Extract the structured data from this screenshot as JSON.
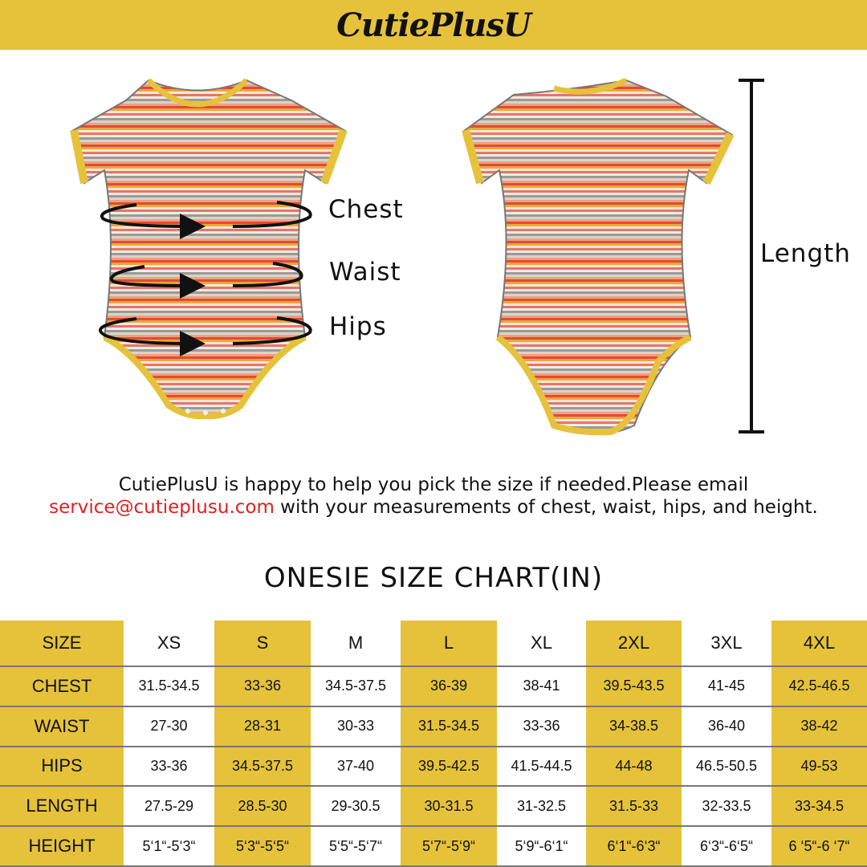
{
  "brand": {
    "logo_text": "CutiePlusU"
  },
  "labels": {
    "chest": "Chest",
    "waist": "Waist",
    "hips": "Hips",
    "length": "Length"
  },
  "message": {
    "line1": "CutiePlusU is happy to help you pick the size if needed.Please email",
    "email": "service@cutieplusu.com",
    "line2_rest": " with your measurements of chest, waist, hips, and height."
  },
  "chart_title": "ONESIE  SIZE  CHART(IN)",
  "colors": {
    "accent": "#E6C23B",
    "email": "#e02020",
    "text": "#111111"
  },
  "size_table": {
    "header": [
      "SIZE",
      "XS",
      "S",
      "M",
      "L",
      "XL",
      "2XL",
      "3XL",
      "4XL"
    ],
    "rows": [
      [
        "CHEST",
        "31.5-34.5",
        "33-36",
        "34.5-37.5",
        "36-39",
        "38-41",
        "39.5-43.5",
        "41-45",
        "42.5-46.5"
      ],
      [
        "WAIST",
        "27-30",
        "28-31",
        "30-33",
        "31.5-34.5",
        "33-36",
        "34-38.5",
        "36-40",
        "38-42"
      ],
      [
        "HIPS",
        "33-36",
        "34.5-37.5",
        "37-40",
        "39.5-42.5",
        "41.5-44.5",
        "44-48",
        "46.5-50.5",
        "49-53"
      ],
      [
        "LENGTH",
        "27.5-29",
        "28.5-30",
        "29-30.5",
        "30-31.5",
        "31-32.5",
        "31.5-33",
        "32-33.5",
        "33-34.5"
      ],
      [
        "HEIGHT",
        "5‘1“-5‘3“",
        "5‘3“-5‘5“",
        "5‘5“-5‘7“",
        "5‘7“-5‘9“",
        "5‘9“-6‘1“",
        "6‘1“-6‘3“",
        "6‘3“-6‘5“",
        "6 ‘5“-6 ‘7“"
      ]
    ]
  }
}
